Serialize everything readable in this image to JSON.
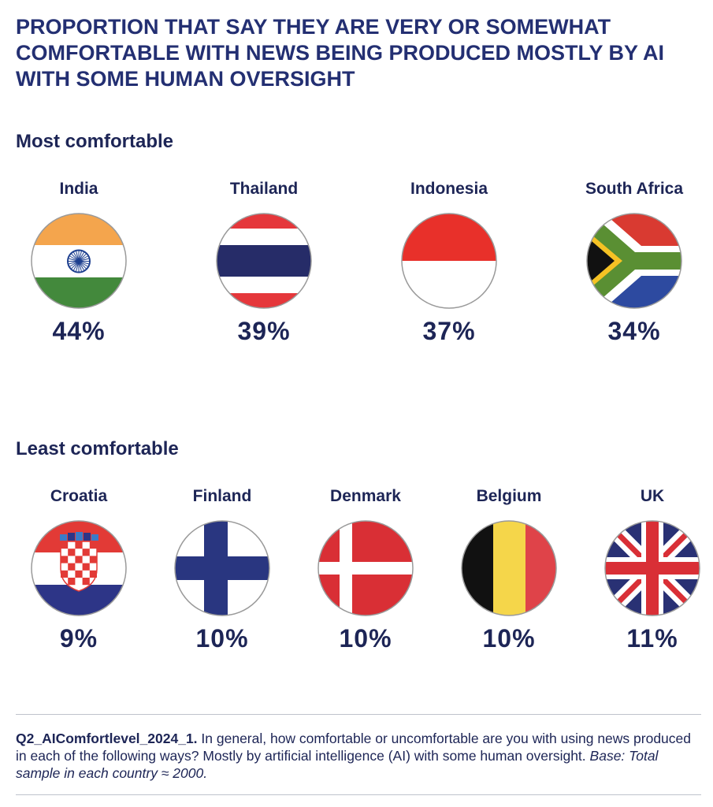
{
  "title": "PROPORTION THAT SAY THEY ARE VERY OR SOMEWHAT COMFORTABLE WITH NEWS BEING PRODUCED MOSTLY BY AI WITH SOME HUMAN OVERSIGHT",
  "sections": {
    "most": {
      "heading": "Most comfortable"
    },
    "least": {
      "heading": "Least comfortable"
    }
  },
  "countries": {
    "most": [
      {
        "name": "India",
        "value_label": "44%",
        "flag": "india-flag"
      },
      {
        "name": "Thailand",
        "value_label": "39%",
        "flag": "thailand-flag"
      },
      {
        "name": "Indonesia",
        "value_label": "37%",
        "flag": "indonesia-flag"
      },
      {
        "name": "South Africa",
        "value_label": "34%",
        "flag": "south-africa-flag"
      }
    ],
    "least": [
      {
        "name": "Croatia",
        "value_label": "9%",
        "flag": "croatia-flag"
      },
      {
        "name": "Finland",
        "value_label": "10%",
        "flag": "finland-flag"
      },
      {
        "name": "Denmark",
        "value_label": "10%",
        "flag": "denmark-flag"
      },
      {
        "name": "Belgium",
        "value_label": "10%",
        "flag": "belgium-flag"
      },
      {
        "name": "UK",
        "value_label": "11%",
        "flag": "uk-flag"
      }
    ]
  },
  "footnote": {
    "question_id": "Q2_AIComfortlevel_2024_1.",
    "question_text": " In general, how comfortable or uncomfortable are you with using news produced in each of the following ways? Mostly by artificial intelligence (AI) with some human oversight.",
    "base": " Base: Total sample in each country ≈ 2000."
  },
  "chart_data": {
    "type": "table",
    "title": "PROPORTION THAT SAY THEY ARE VERY OR SOMEWHAT COMFORTABLE WITH NEWS BEING PRODUCED MOSTLY BY AI WITH SOME HUMAN OVERSIGHT",
    "groups": [
      {
        "name": "Most comfortable",
        "categories": [
          "India",
          "Thailand",
          "Indonesia",
          "South Africa"
        ],
        "values": [
          44,
          39,
          37,
          34
        ],
        "unit": "%"
      },
      {
        "name": "Least comfortable",
        "categories": [
          "Croatia",
          "Finland",
          "Denmark",
          "Belgium",
          "UK"
        ],
        "values": [
          9,
          10,
          10,
          10,
          11
        ],
        "unit": "%"
      }
    ]
  },
  "colors": {
    "navy": "#1d2556",
    "india_saffron": "#f4a54d",
    "india_green": "#43893c",
    "india_chakra": "#1d3f8f",
    "thai_red": "#e5373b",
    "thai_blue": "#262c68",
    "indo_red": "#e8302a",
    "za_red": "#d93a31",
    "za_blue": "#2d4aa0",
    "za_green": "#5a8f33",
    "za_yellow": "#f5c224",
    "hr_red": "#e23a36",
    "hr_blue": "#2d3587",
    "fi_blue": "#293680",
    "dk_red": "#d92f35",
    "be_yellow": "#f5d64a",
    "be_red": "#df4349",
    "uk_blue": "#293174",
    "uk_red": "#d92f36"
  }
}
